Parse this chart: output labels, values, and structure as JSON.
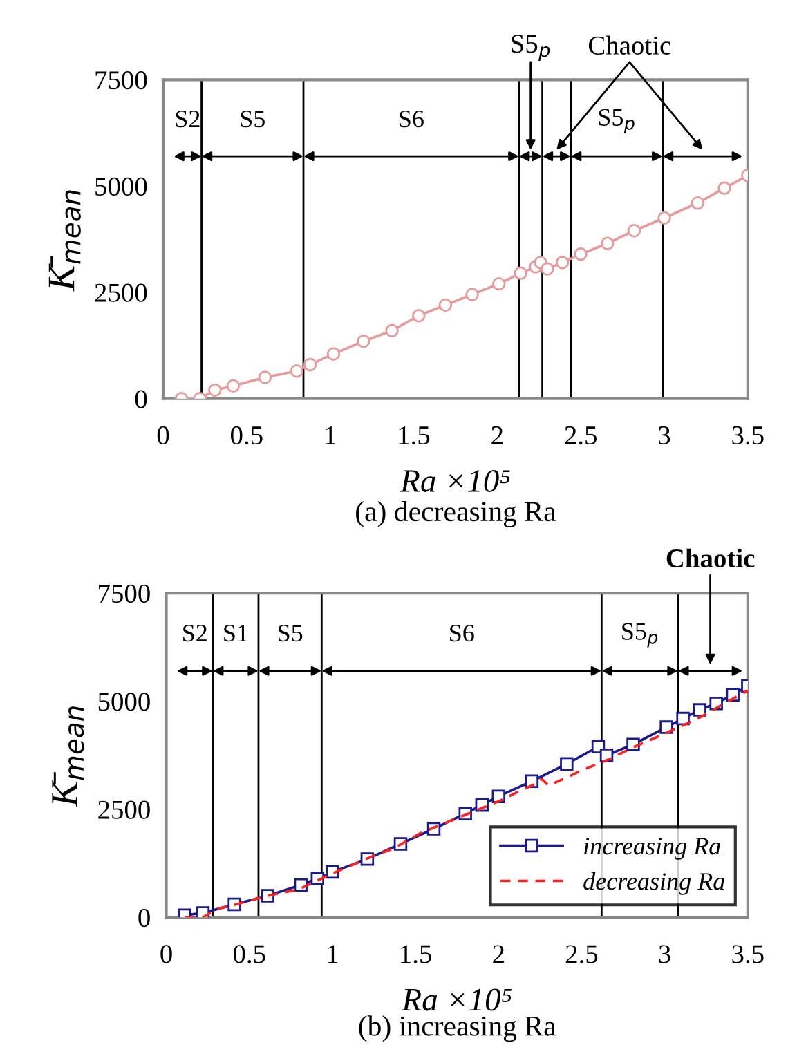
{
  "chart_data": [
    {
      "type": "line",
      "title": "(a) decreasing Ra",
      "xlabel": "Ra ×10⁵",
      "ylabel": "K̄$_{mean}$",
      "xlim": [
        0,
        3.5
      ],
      "xticks": [
        0,
        0.5,
        1,
        1.5,
        2,
        2.5,
        3,
        3.5
      ],
      "ylim": [
        0,
        7500
      ],
      "yticks": [
        0,
        2500,
        5000,
        7500
      ],
      "grid": false,
      "legend": false,
      "marker": "circle",
      "line_style": "solid",
      "series": [
        {
          "color": "#e89a9a",
          "x": [
            0.11,
            0.22,
            0.31,
            0.42,
            0.61,
            0.8,
            0.88,
            1.02,
            1.2,
            1.37,
            1.53,
            1.69,
            1.85,
            2.01,
            2.14,
            2.23,
            2.26,
            2.3,
            2.39,
            2.5,
            2.66,
            2.82,
            3.0,
            3.2,
            3.36,
            3.5
          ],
          "values": [
            0,
            0,
            200,
            300,
            500,
            650,
            800,
            1050,
            1350,
            1600,
            1950,
            2200,
            2450,
            2700,
            2950,
            3100,
            3200,
            3050,
            3200,
            3400,
            3650,
            3950,
            4250,
            4600,
            4950,
            5250
          ]
        }
      ],
      "ref_lines": [
        {
          "axis": "x",
          "value": 0.23,
          "color": "#000000"
        },
        {
          "axis": "x",
          "value": 0.84,
          "color": "#000000"
        },
        {
          "axis": "x",
          "value": 2.13,
          "color": "#000000"
        },
        {
          "axis": "x",
          "value": 2.27,
          "color": "#000000"
        },
        {
          "axis": "x",
          "value": 2.44,
          "color": "#000000"
        },
        {
          "axis": "x",
          "value": 2.99,
          "color": "#000000"
        }
      ],
      "annotations": [
        "S2",
        "S5",
        "S6",
        "S5$_{p}$",
        "Chaotic",
        "S5$_{p}$"
      ]
    },
    {
      "type": "line",
      "title": "(b) increasing Ra",
      "xlabel": "Ra ×10⁵",
      "ylabel": "K̄$_{mean}$",
      "xlim": [
        0,
        3.5
      ],
      "xticks": [
        0,
        0.5,
        1,
        1.5,
        2,
        2.5,
        3,
        3.5
      ],
      "ylim": [
        0,
        7500
      ],
      "yticks": [
        0,
        2500,
        5000,
        7500
      ],
      "grid": false,
      "legend": "bottom right",
      "line_style": "solid",
      "series": [
        {
          "name": "increasing Ra",
          "color": "#1a1a8c",
          "marker": "square",
          "x": [
            0.11,
            0.22,
            0.41,
            0.61,
            0.81,
            0.91,
            1.0,
            1.21,
            1.41,
            1.61,
            1.8,
            1.9,
            2.0,
            2.2,
            2.41,
            2.6,
            2.65,
            2.81,
            3.01,
            3.11,
            3.21,
            3.31,
            3.41,
            3.5
          ],
          "values": [
            50,
            100,
            300,
            500,
            750,
            900,
            1050,
            1350,
            1700,
            2050,
            2400,
            2600,
            2800,
            3150,
            3550,
            3950,
            3750,
            4000,
            4400,
            4600,
            4800,
            4950,
            5150,
            5350
          ]
        },
        {
          "name": "decreasing Ra",
          "color": "#ff2020",
          "marker": "none",
          "line_style": "dashed",
          "x": [
            0.11,
            0.22,
            0.31,
            0.42,
            0.61,
            0.8,
            0.88,
            1.02,
            1.2,
            1.37,
            1.53,
            1.69,
            1.85,
            2.01,
            2.14,
            2.23,
            2.26,
            2.3,
            2.39,
            2.5,
            2.66,
            2.82,
            3.0,
            3.2,
            3.36,
            3.5
          ],
          "values": [
            0,
            0,
            200,
            300,
            500,
            650,
            800,
            1050,
            1350,
            1600,
            1950,
            2200,
            2450,
            2700,
            2950,
            3100,
            3200,
            3050,
            3200,
            3400,
            3650,
            3950,
            4250,
            4600,
            4950,
            5250
          ]
        }
      ],
      "ref_lines": [
        {
          "axis": "x",
          "value": 0.28,
          "color": "#000000"
        },
        {
          "axis": "x",
          "value": 0.555,
          "color": "#000000"
        },
        {
          "axis": "x",
          "value": 0.935,
          "color": "#000000"
        },
        {
          "axis": "x",
          "value": 2.62,
          "color": "#000000"
        },
        {
          "axis": "x",
          "value": 3.08,
          "color": "#000000"
        }
      ],
      "annotations": [
        "S2",
        "S1",
        "S5",
        "S6",
        "S5$_{p}$",
        "Chaotic"
      ]
    }
  ]
}
